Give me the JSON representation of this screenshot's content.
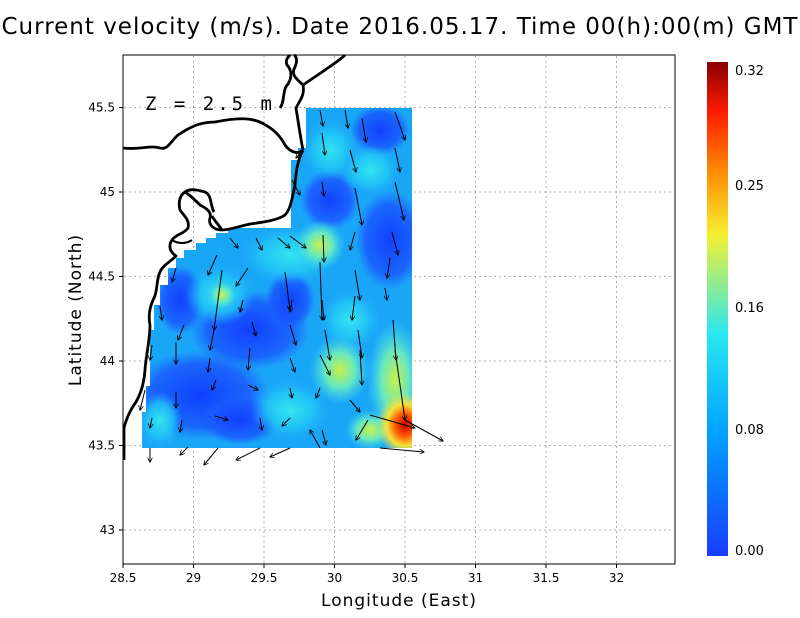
{
  "title": "Current velocity (m/s). Date 2016.05.17. Time 00(h):00(m) GMT",
  "depth_label": "Z = 2.5 m",
  "x_axis": {
    "label": "Longitude (East)",
    "ticks": [
      "28.5",
      "29",
      "29.5",
      "30",
      "30.5",
      "31",
      "31.5",
      "32"
    ]
  },
  "y_axis": {
    "label": "Latitude (North)",
    "ticks": [
      "43",
      "43.5",
      "44",
      "44.5",
      "45",
      "45.5"
    ]
  },
  "colorbar": {
    "ticks": [
      "0.00",
      "0.08",
      "0.16",
      "0.25",
      "0.32"
    ],
    "colors": [
      "#1a3cff",
      "#00a2ff",
      "#29e8f0",
      "#f5f032",
      "#ff8a00",
      "#ff1a00",
      "#8a0000"
    ]
  },
  "chart_data": {
    "type": "heatmap",
    "title": "Current velocity (m/s). Date 2016.05.17. Time 00(h):00(m) GMT",
    "xlabel": "Longitude (East)",
    "ylabel": "Latitude (North)",
    "xlim": [
      28.5,
      32.4
    ],
    "ylim": [
      42.8,
      45.8
    ],
    "colorbar_range": [
      0.0,
      0.32
    ],
    "grid": true,
    "arrows_sample": [
      {
        "lon": 29.75,
        "lat": 44.75,
        "u": 0.08,
        "v": -0.03
      },
      {
        "lon": 29.95,
        "lat": 44.75,
        "u": 0.0,
        "v": -0.15
      },
      {
        "lon": 30.5,
        "lat": 43.6,
        "u": 0.2,
        "v": -0.05
      },
      {
        "lon": 30.3,
        "lat": 43.6,
        "u": 0.1,
        "v": 0.0
      }
    ]
  }
}
